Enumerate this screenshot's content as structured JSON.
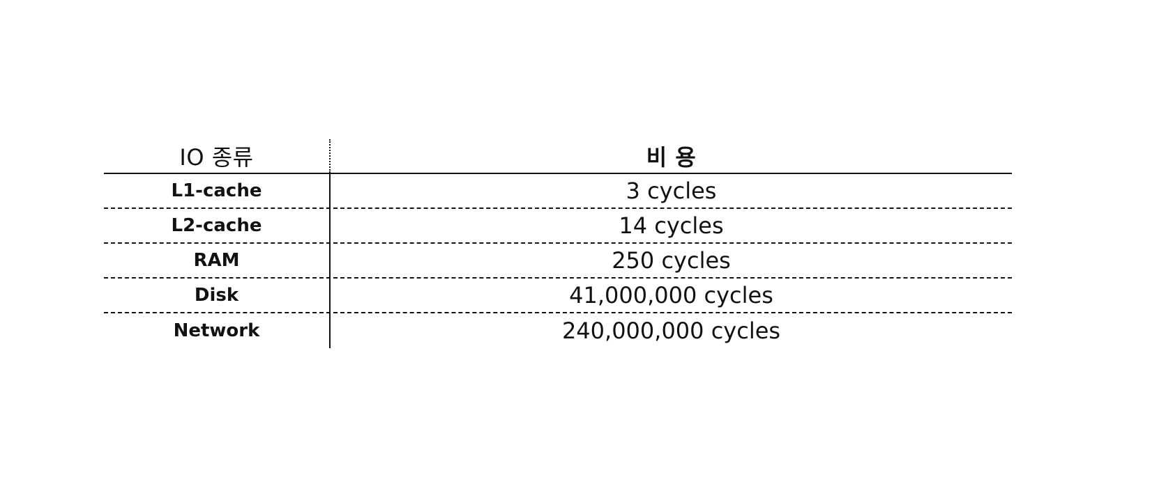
{
  "table": {
    "headers": {
      "type": "IO 종류",
      "cost": "비 용"
    },
    "rows": [
      {
        "type": "L1-cache",
        "cost": "3 cycles"
      },
      {
        "type": "L2-cache",
        "cost": "14 cycles"
      },
      {
        "type": "RAM",
        "cost": "250 cycles"
      },
      {
        "type": "Disk",
        "cost": "41,000,000 cycles"
      },
      {
        "type": "Network",
        "cost": "240,000,000 cycles"
      }
    ]
  }
}
